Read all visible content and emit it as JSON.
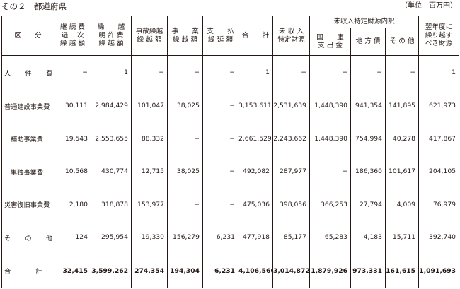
{
  "page": {
    "title": "その２　都道府県",
    "unit": "（単位　百万円）"
  },
  "table": {
    "headers": {
      "category": "区　　分",
      "keizoku": "継 続 費\n逓　 次\n繰 越 額",
      "meikyo": "繰　　越\n明 許 費\n繰 越 額",
      "jiko": "事故繰越\n繰 越 額",
      "jigyo": "事　　業\n繰 越 額",
      "shiharai": "支　　払\n繰 延 額",
      "total": "合　　計",
      "mishu": "未 収 入\n特定財源",
      "breakdown_group": "未収入特定財源内訳",
      "kokko": "国　　庫\n支 出 金",
      "chihousai": "地 方 債",
      "sonota": "そ の 他",
      "carry": "翌年度に\n繰り越す\nべき財源"
    },
    "rows": [
      {
        "label": "人　件　費",
        "values": [
          "−",
          "1",
          "−",
          "−",
          "−",
          "1",
          "−",
          "−",
          "−",
          "−",
          "1"
        ]
      },
      {
        "label": "普通建設事業費",
        "values": [
          "30,111",
          "2,984,429",
          "101,047",
          "38,025",
          "−",
          "3,153,611",
          "2,531,639",
          "1,448,390",
          "941,354",
          "141,895",
          "621,973"
        ]
      },
      {
        "label": "補助事業費",
        "values": [
          "19,543",
          "2,553,655",
          "88,332",
          "−",
          "−",
          "2,661,529",
          "2,243,662",
          "1,448,390",
          "754,994",
          "40,278",
          "417,867"
        ]
      },
      {
        "label": "単独事業費",
        "values": [
          "10,568",
          "430,774",
          "12,715",
          "38,025",
          "−",
          "492,082",
          "287,977",
          "−",
          "186,360",
          "101,617",
          "204,105"
        ]
      },
      {
        "label": "災害復旧事業費",
        "values": [
          "2,180",
          "318,878",
          "153,977",
          "−",
          "−",
          "475,036",
          "398,056",
          "366,253",
          "27,794",
          "4,009",
          "76,979"
        ]
      },
      {
        "label": "そ　の　他",
        "values": [
          "124",
          "295,954",
          "19,330",
          "156,279",
          "6,231",
          "477,918",
          "85,177",
          "65,283",
          "4,183",
          "15,711",
          "392,740"
        ]
      },
      {
        "label": "合　　計",
        "values": [
          "32,415",
          "3,599,262",
          "274,354",
          "194,304",
          "6,231",
          "4,106,566",
          "3,014,872",
          "1,879,926",
          "973,331",
          "161,615",
          "1,091,693"
        ]
      }
    ]
  }
}
